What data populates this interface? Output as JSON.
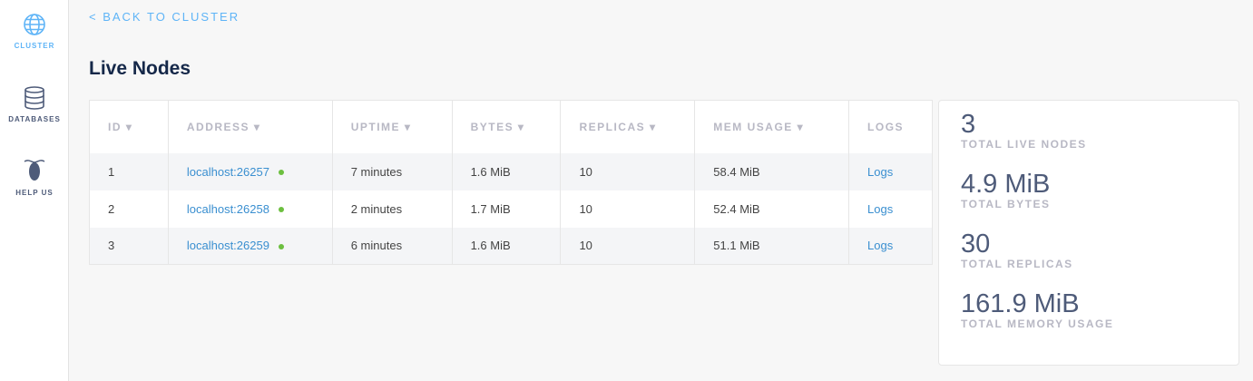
{
  "sidebar": {
    "items": [
      {
        "label": "CLUSTER",
        "icon": "globe-icon",
        "active": true
      },
      {
        "label": "DATABASES",
        "icon": "database-icon"
      },
      {
        "label": "HELP US",
        "icon": "cockroach-icon"
      }
    ]
  },
  "back_link": "< BACK TO CLUSTER",
  "title": "Live Nodes",
  "table": {
    "headers": [
      "ID ▾",
      "ADDRESS ▾",
      "UPTIME ▾",
      "BYTES ▾",
      "REPLICAS ▾",
      "MEM USAGE ▾",
      "LOGS"
    ],
    "rows": [
      {
        "id": "1",
        "address": "localhost:26257",
        "uptime": "7 minutes",
        "bytes": "1.6 MiB",
        "replicas": "10",
        "mem": "58.4 MiB",
        "logs": "Logs"
      },
      {
        "id": "2",
        "address": "localhost:26258",
        "uptime": "2 minutes",
        "bytes": "1.7 MiB",
        "replicas": "10",
        "mem": "52.4 MiB",
        "logs": "Logs"
      },
      {
        "id": "3",
        "address": "localhost:26259",
        "uptime": "6 minutes",
        "bytes": "1.6 MiB",
        "replicas": "10",
        "mem": "51.1 MiB",
        "logs": "Logs"
      }
    ]
  },
  "stats": [
    {
      "value": "3",
      "label": "TOTAL LIVE NODES"
    },
    {
      "value": "4.9 MiB",
      "label": "TOTAL BYTES"
    },
    {
      "value": "30",
      "label": "TOTAL REPLICAS"
    },
    {
      "value": "161.9 MiB",
      "label": "TOTAL MEMORY USAGE"
    }
  ],
  "colors": {
    "accent": "#5eb4f7",
    "link": "#3a8fd0",
    "live": "#6cbf3f"
  }
}
